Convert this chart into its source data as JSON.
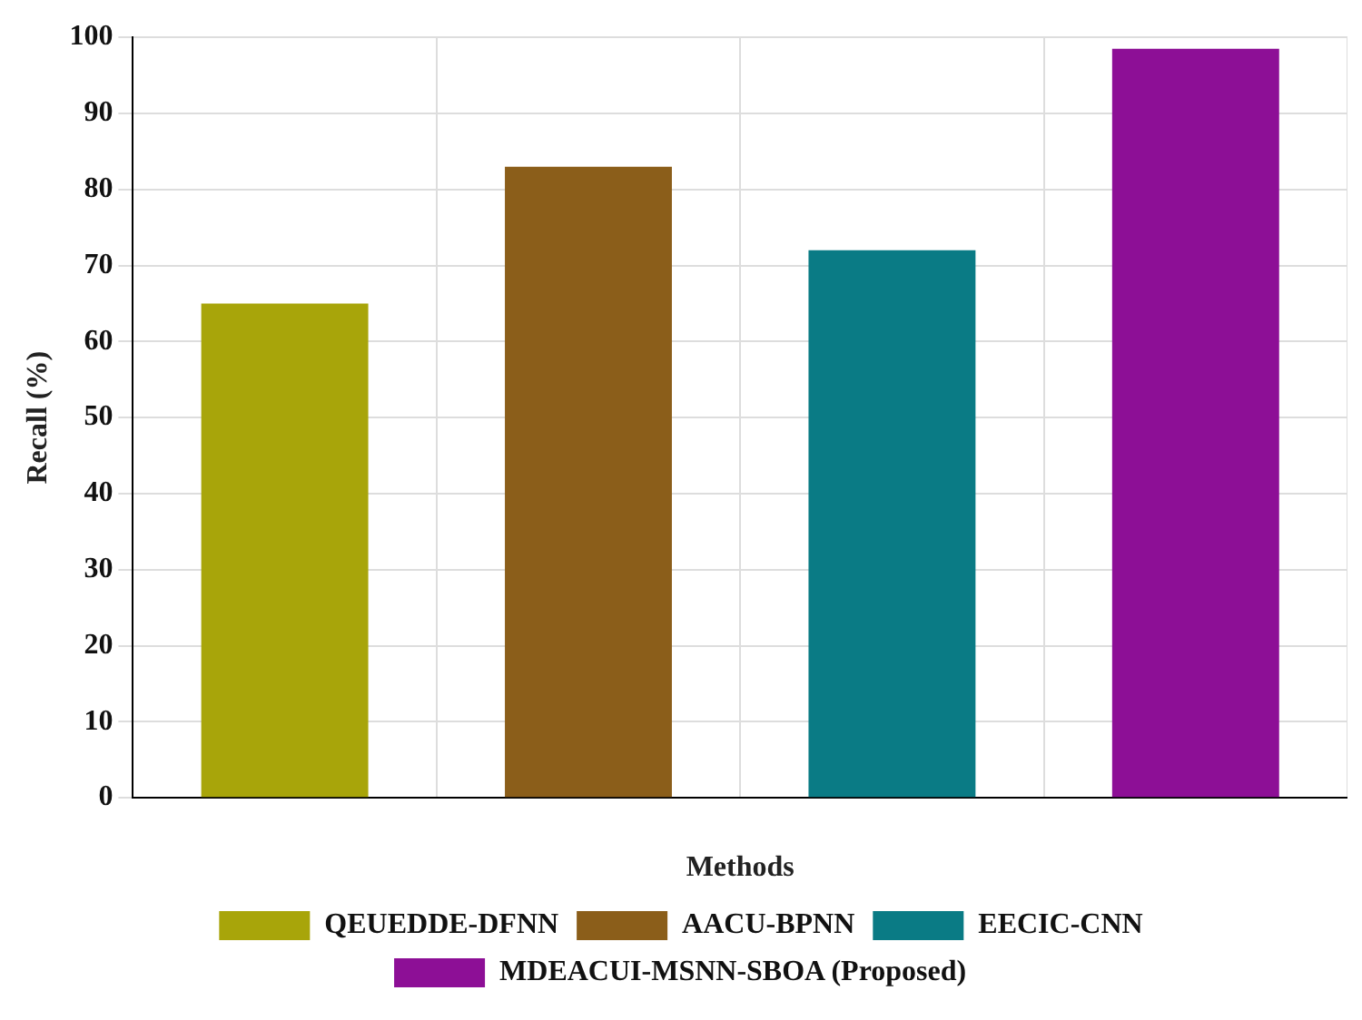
{
  "chart_data": {
    "type": "bar",
    "xlabel": "Methods",
    "ylabel": "Recall (%)",
    "categories": [
      null,
      null,
      null,
      null
    ],
    "series": [
      {
        "name": "QEUEDDE-DFNN",
        "color": "#a8a50a",
        "values": [
          65,
          null,
          null,
          null
        ]
      },
      {
        "name": "AACU-BPNN",
        "color": "#8b5e1a",
        "values": [
          null,
          83,
          null,
          null
        ]
      },
      {
        "name": "EECIC-CNN",
        "color": "#0a7b85",
        "values": [
          null,
          null,
          72,
          null
        ]
      },
      {
        "name": "MDEACUI-MSNN-SBOA (Proposed)",
        "color": "#8d0f96",
        "values": [
          null,
          null,
          null,
          98.5
        ]
      }
    ],
    "ylim": [
      0,
      100
    ],
    "yticks": [
      0,
      10,
      20,
      30,
      40,
      50,
      60,
      70,
      80,
      90,
      100
    ],
    "grid": true,
    "legend": "bottom"
  }
}
